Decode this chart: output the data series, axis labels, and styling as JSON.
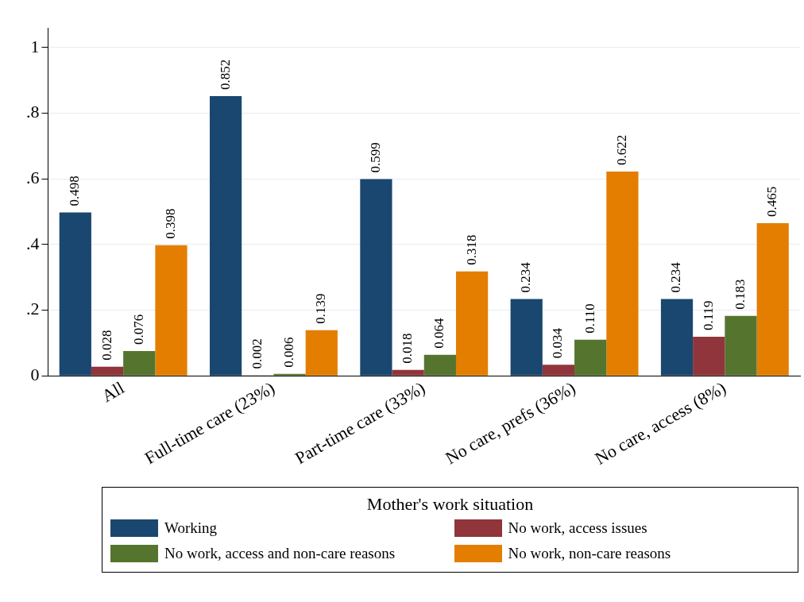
{
  "chart_data": {
    "type": "bar",
    "categories": [
      "All",
      "Full-time care (23%)",
      "Part-time care (33%)",
      "No care, prefs (36%)",
      "No care, access (8%)"
    ],
    "series": [
      {
        "name": "Working",
        "color": "#1a476f",
        "values": [
          0.498,
          0.852,
          0.599,
          0.234,
          0.234
        ],
        "value_labels": [
          "0.498",
          "0.852",
          "0.599",
          "0.234",
          "0.234"
        ]
      },
      {
        "name": "No work, access issues",
        "color": "#90353b",
        "values": [
          0.028,
          0.002,
          0.018,
          0.034,
          0.119
        ],
        "value_labels": [
          "0.028",
          "0.002",
          "0.018",
          "0.034",
          "0.119"
        ]
      },
      {
        "name": "No work, access and non-care reasons",
        "color": "#55752f",
        "values": [
          0.076,
          0.006,
          0.064,
          0.11,
          0.183
        ],
        "value_labels": [
          "0.076",
          "0.006",
          "0.064",
          "0.110",
          "0.183"
        ]
      },
      {
        "name": "No work, non-care reasons",
        "color": "#e37e00",
        "values": [
          0.398,
          0.139,
          0.318,
          0.622,
          0.465
        ],
        "value_labels": [
          "0.398",
          "0.139",
          "0.318",
          "0.622",
          "0.465"
        ]
      }
    ],
    "legend_title": "Mother's work situation",
    "ylim": [
      0,
      1.06
    ],
    "yticks": [
      0,
      {
        "value": 0.2,
        "label": ".2"
      },
      {
        "value": 0.4,
        "label": ".4"
      },
      {
        "value": 0.6,
        "label": ".6"
      },
      {
        "value": 0.8,
        "label": ".8"
      },
      1
    ],
    "grid": "y",
    "legend": "bottom"
  }
}
